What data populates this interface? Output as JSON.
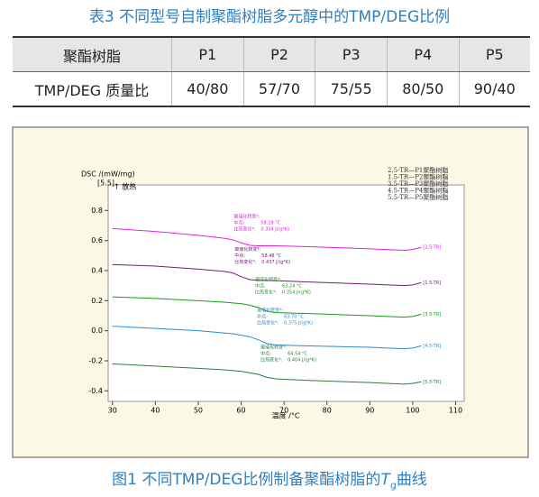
{
  "header": {
    "title": "表3 不同型号自制聚酯树脂多元醇中的TMP/DEG比例"
  },
  "table": {
    "columns": [
      "聚酯树脂",
      "P1",
      "P2",
      "P3",
      "P4",
      "P5"
    ],
    "rows": [
      [
        "TMP/DEG 质量比",
        "40/80",
        "57/70",
        "75/55",
        "80/50",
        "90/40"
      ]
    ]
  },
  "chart_data": {
    "type": "line",
    "y_label": "DSC /(mW/mg)",
    "y_label_sub": "[5.5]",
    "y_direction": "↑ 放热",
    "x_label": "温度 /°C",
    "x": [
      30,
      40,
      50,
      56,
      58,
      60,
      62,
      64,
      66,
      68,
      75,
      90,
      98,
      100,
      102
    ],
    "xlim": [
      29,
      112
    ],
    "xticks": [
      30,
      40,
      50,
      60,
      70,
      80,
      90,
      100,
      110
    ],
    "ylim": [
      -0.47,
      0.97
    ],
    "yticks": [
      -0.4,
      -0.2,
      {
        "value": 0,
        "label": "0.0"
      },
      0.2,
      0.4,
      0.6,
      0.8
    ],
    "series": [
      {
        "name": "2.5-TR—P1聚酯树脂",
        "end_label": "[2.5-TR]",
        "color": "#e020e0",
        "values": [
          0.68,
          0.66,
          0.635,
          0.615,
          0.605,
          0.585,
          0.568,
          0.565,
          0.566,
          0.565,
          0.56,
          0.545,
          0.535,
          0.54,
          0.555
        ],
        "annotation": {
          "title": "玻璃化转变*:",
          "mid": "中点:",
          "mid_value": "58.28 °C",
          "cp": "比热变化*:",
          "cp_value": "0.334 J/(g*K)",
          "tg": 58.28
        }
      },
      {
        "name": "1.5-TR—P2聚酯树脂",
        "end_label": "[1.5-TR]",
        "color": "#702070",
        "values": [
          0.44,
          0.43,
          0.41,
          0.395,
          0.385,
          0.36,
          0.34,
          0.335,
          0.335,
          0.333,
          0.325,
          0.31,
          0.3,
          0.305,
          0.32
        ],
        "annotation": {
          "title": "玻璃化转变*:",
          "mid": "中点:",
          "mid_value": "58.48 °C",
          "cp": "比热变化*:",
          "cp_value": "0.437 J/(g*K)",
          "tg": 58.48
        }
      },
      {
        "name": "3.5-TR—P3聚酯树脂",
        "end_label": "[3.5-TR]",
        "color": "#1a9a1a",
        "values": [
          0.225,
          0.215,
          0.2,
          0.19,
          0.185,
          0.18,
          0.17,
          0.155,
          0.13,
          0.12,
          0.115,
          0.1,
          0.09,
          0.095,
          0.11
        ],
        "annotation": {
          "title": "玻璃化转变*:",
          "mid": "中点:",
          "mid_value": "63.24 °C",
          "cp": "比热变化*:",
          "cp_value": "0.354 J/(g*K)",
          "tg": 63.24
        }
      },
      {
        "name": "4.5-TR—P4聚酯树脂",
        "end_label": "[4.5-TR]",
        "color": "#2a8ad8",
        "values": [
          0.03,
          0.015,
          0,
          -0.015,
          -0.02,
          -0.03,
          -0.04,
          -0.06,
          -0.085,
          -0.095,
          -0.1,
          -0.11,
          -0.12,
          -0.115,
          -0.1
        ],
        "annotation": {
          "title": "玻璃化转变*:",
          "mid": "中点:",
          "mid_value": "63.70 °C",
          "cp": "比热变化*:",
          "cp_value": "0.375 J/(g*K)",
          "tg": 63.7
        }
      },
      {
        "name": "5.5-TR—P5聚酯树脂",
        "end_label": "[5.5-TR]",
        "color": "#2a7a40",
        "values": [
          -0.22,
          -0.235,
          -0.25,
          -0.26,
          -0.265,
          -0.27,
          -0.28,
          -0.29,
          -0.31,
          -0.32,
          -0.33,
          -0.345,
          -0.355,
          -0.35,
          -0.34
        ],
        "annotation": {
          "title": "玻璃化转变*:",
          "mid": "中点:",
          "mid_value": "64.54 °C",
          "cp": "比热变化*:",
          "cp_value": "0.404 J/(g*K)",
          "tg": 64.54
        }
      }
    ]
  },
  "caption": {
    "text": "图1 不同TMP/DEG比例制备聚酯树脂的",
    "symbol": "T",
    "subscript": "g",
    "suffix": "曲线"
  }
}
